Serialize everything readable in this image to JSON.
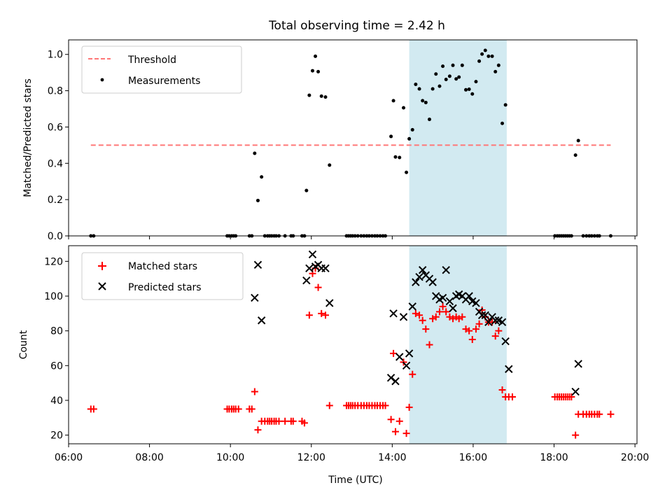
{
  "title": "Total observing time = 2.42 h",
  "colors": {
    "threshold": "#ff7777",
    "measurement": "#000000",
    "matched": "#ff0000",
    "predicted": "#000000",
    "shade": "#add8e6"
  },
  "chart_data": [
    {
      "type": "scatter",
      "ylabel": "Matched/Predicted stars",
      "ylim": [
        0,
        1.08
      ],
      "yticks": [
        0,
        0.2,
        0.4,
        0.6,
        0.8,
        1.0
      ],
      "ytick_labels": [
        "0.0",
        "0.2",
        "0.4",
        "0.6",
        "0.8",
        "1.0"
      ],
      "xlim": [
        6.0,
        20.05
      ],
      "shade": [
        14.42,
        16.83
      ],
      "legend": {
        "position": "top-left",
        "entries": [
          "Threshold",
          "Measurements"
        ]
      },
      "threshold": {
        "name": "Threshold",
        "x": [
          6.55,
          19.4
        ],
        "y": [
          0.5,
          0.5
        ]
      },
      "series": [
        {
          "name": "Measurements",
          "points": [
            [
              6.55,
              0
            ],
            [
              6.62,
              0
            ],
            [
              9.92,
              0
            ],
            [
              9.97,
              0
            ],
            [
              10.03,
              0
            ],
            [
              10.08,
              0
            ],
            [
              10.13,
              0
            ],
            [
              10.47,
              0
            ],
            [
              10.53,
              0
            ],
            [
              10.6,
              0.455
            ],
            [
              10.68,
              0.195
            ],
            [
              10.77,
              0.325
            ],
            [
              10.85,
              0
            ],
            [
              10.92,
              0
            ],
            [
              10.97,
              0
            ],
            [
              11.02,
              0
            ],
            [
              11.08,
              0
            ],
            [
              11.13,
              0
            ],
            [
              11.2,
              0
            ],
            [
              11.35,
              0
            ],
            [
              11.5,
              0
            ],
            [
              11.55,
              0
            ],
            [
              11.77,
              0
            ],
            [
              11.83,
              0
            ],
            [
              11.88,
              0.25
            ],
            [
              11.95,
              0.775
            ],
            [
              12.03,
              0.91
            ],
            [
              12.1,
              0.99
            ],
            [
              12.17,
              0.905
            ],
            [
              12.25,
              0.77
            ],
            [
              12.35,
              0.765
            ],
            [
              12.45,
              0.39
            ],
            [
              12.87,
              0
            ],
            [
              12.92,
              0
            ],
            [
              12.97,
              0
            ],
            [
              13.02,
              0
            ],
            [
              13.08,
              0
            ],
            [
              13.15,
              0
            ],
            [
              13.23,
              0
            ],
            [
              13.3,
              0
            ],
            [
              13.37,
              0
            ],
            [
              13.43,
              0
            ],
            [
              13.5,
              0
            ],
            [
              13.57,
              0
            ],
            [
              13.63,
              0
            ],
            [
              13.7,
              0
            ],
            [
              13.77,
              0
            ],
            [
              13.83,
              0
            ],
            [
              13.97,
              0.548
            ],
            [
              14.03,
              0.745
            ],
            [
              14.08,
              0.435
            ],
            [
              14.18,
              0.432
            ],
            [
              14.28,
              0.706
            ],
            [
              14.35,
              0.35
            ],
            [
              14.42,
              0.535
            ],
            [
              14.5,
              0.585
            ],
            [
              14.58,
              0.835
            ],
            [
              14.67,
              0.81
            ],
            [
              14.75,
              0.745
            ],
            [
              14.83,
              0.735
            ],
            [
              14.92,
              0.642
            ],
            [
              15.0,
              0.81
            ],
            [
              15.08,
              0.892
            ],
            [
              15.17,
              0.825
            ],
            [
              15.25,
              0.935
            ],
            [
              15.33,
              0.862
            ],
            [
              15.42,
              0.88
            ],
            [
              15.5,
              0.94
            ],
            [
              15.58,
              0.865
            ],
            [
              15.65,
              0.875
            ],
            [
              15.73,
              0.94
            ],
            [
              15.82,
              0.805
            ],
            [
              15.9,
              0.808
            ],
            [
              15.98,
              0.782
            ],
            [
              16.07,
              0.85
            ],
            [
              16.15,
              0.963
            ],
            [
              16.22,
              1.002
            ],
            [
              16.3,
              1.022
            ],
            [
              16.38,
              0.99
            ],
            [
              16.47,
              0.99
            ],
            [
              16.55,
              0.905
            ],
            [
              16.63,
              0.94
            ],
            [
              16.72,
              0.62
            ],
            [
              16.8,
              0.722
            ],
            [
              18.02,
              0
            ],
            [
              18.08,
              0
            ],
            [
              18.13,
              0
            ],
            [
              18.18,
              0
            ],
            [
              18.23,
              0
            ],
            [
              18.28,
              0
            ],
            [
              18.33,
              0
            ],
            [
              18.38,
              0
            ],
            [
              18.43,
              0
            ],
            [
              18.53,
              0.445
            ],
            [
              18.6,
              0.525
            ],
            [
              18.72,
              0
            ],
            [
              18.8,
              0
            ],
            [
              18.87,
              0
            ],
            [
              18.93,
              0
            ],
            [
              19.0,
              0
            ],
            [
              19.07,
              0
            ],
            [
              19.12,
              0
            ],
            [
              19.4,
              0
            ]
          ]
        }
      ]
    },
    {
      "type": "scatter",
      "ylabel": "Count",
      "xlabel": "Time (UTC)",
      "ylim": [
        15,
        129
      ],
      "yticks": [
        20,
        40,
        60,
        80,
        100,
        120
      ],
      "ytick_labels": [
        "20",
        "40",
        "60",
        "80",
        "100",
        "120"
      ],
      "xlim": [
        6.0,
        20.05
      ],
      "xticks": [
        6,
        8,
        10,
        12,
        14,
        16,
        18,
        20
      ],
      "xtick_labels": [
        "06:00",
        "08:00",
        "10:00",
        "12:00",
        "14:00",
        "16:00",
        "18:00",
        "20:00"
      ],
      "shade": [
        14.42,
        16.83
      ],
      "legend": {
        "position": "top-left",
        "entries": [
          "Matched stars",
          "Predicted stars"
        ]
      },
      "series": [
        {
          "name": "Matched stars",
          "points": [
            [
              6.55,
              35
            ],
            [
              6.62,
              35
            ],
            [
              9.92,
              35
            ],
            [
              9.97,
              35
            ],
            [
              10.03,
              35
            ],
            [
              10.08,
              35
            ],
            [
              10.13,
              35
            ],
            [
              10.2,
              35
            ],
            [
              10.47,
              35
            ],
            [
              10.53,
              35
            ],
            [
              10.6,
              45
            ],
            [
              10.68,
              23
            ],
            [
              10.77,
              28
            ],
            [
              10.85,
              28
            ],
            [
              10.92,
              28
            ],
            [
              10.97,
              28
            ],
            [
              11.02,
              28
            ],
            [
              11.08,
              28
            ],
            [
              11.13,
              28
            ],
            [
              11.2,
              28
            ],
            [
              11.35,
              28
            ],
            [
              11.5,
              28
            ],
            [
              11.55,
              28
            ],
            [
              11.77,
              28
            ],
            [
              11.83,
              27
            ],
            [
              11.95,
              89
            ],
            [
              12.03,
              113
            ],
            [
              12.1,
              116
            ],
            [
              12.17,
              105
            ],
            [
              12.25,
              90
            ],
            [
              12.35,
              89
            ],
            [
              12.45,
              37
            ],
            [
              12.87,
              37
            ],
            [
              12.92,
              37
            ],
            [
              12.97,
              37
            ],
            [
              13.02,
              37
            ],
            [
              13.08,
              37
            ],
            [
              13.15,
              37
            ],
            [
              13.23,
              37
            ],
            [
              13.3,
              37
            ],
            [
              13.37,
              37
            ],
            [
              13.43,
              37
            ],
            [
              13.5,
              37
            ],
            [
              13.57,
              37
            ],
            [
              13.63,
              37
            ],
            [
              13.7,
              37
            ],
            [
              13.77,
              37
            ],
            [
              13.83,
              37
            ],
            [
              13.97,
              29
            ],
            [
              14.03,
              67
            ],
            [
              14.08,
              22
            ],
            [
              14.18,
              28
            ],
            [
              14.28,
              62
            ],
            [
              14.35,
              21
            ],
            [
              14.42,
              36
            ],
            [
              14.5,
              55
            ],
            [
              14.58,
              90
            ],
            [
              14.67,
              89
            ],
            [
              14.75,
              86
            ],
            [
              14.83,
              81
            ],
            [
              14.92,
              72
            ],
            [
              15.0,
              87
            ],
            [
              15.08,
              88
            ],
            [
              15.17,
              91
            ],
            [
              15.25,
              94
            ],
            [
              15.33,
              91
            ],
            [
              15.42,
              88
            ],
            [
              15.5,
              87
            ],
            [
              15.58,
              88
            ],
            [
              15.65,
              87
            ],
            [
              15.73,
              88
            ],
            [
              15.82,
              81
            ],
            [
              15.9,
              80
            ],
            [
              15.98,
              75
            ],
            [
              16.07,
              81
            ],
            [
              16.15,
              84
            ],
            [
              16.22,
              92
            ],
            [
              16.3,
              88
            ],
            [
              16.38,
              85
            ],
            [
              16.47,
              85
            ],
            [
              16.55,
              77
            ],
            [
              16.63,
              80
            ],
            [
              16.72,
              46
            ],
            [
              16.8,
              42
            ],
            [
              16.88,
              42
            ],
            [
              16.97,
              42
            ],
            [
              18.02,
              42
            ],
            [
              18.08,
              42
            ],
            [
              18.13,
              42
            ],
            [
              18.18,
              42
            ],
            [
              18.23,
              42
            ],
            [
              18.28,
              42
            ],
            [
              18.33,
              42
            ],
            [
              18.38,
              42
            ],
            [
              18.43,
              42
            ],
            [
              18.53,
              20
            ],
            [
              18.6,
              32
            ],
            [
              18.72,
              32
            ],
            [
              18.8,
              32
            ],
            [
              18.87,
              32
            ],
            [
              18.93,
              32
            ],
            [
              19.0,
              32
            ],
            [
              19.07,
              32
            ],
            [
              19.12,
              32
            ],
            [
              19.4,
              32
            ]
          ]
        },
        {
          "name": "Predicted stars",
          "points": [
            [
              10.6,
              99
            ],
            [
              10.68,
              118
            ],
            [
              10.77,
              86
            ],
            [
              11.88,
              109
            ],
            [
              11.95,
              116
            ],
            [
              12.03,
              124
            ],
            [
              12.1,
              117
            ],
            [
              12.17,
              118
            ],
            [
              12.25,
              116
            ],
            [
              12.35,
              116
            ],
            [
              12.45,
              96
            ],
            [
              13.97,
              53
            ],
            [
              14.03,
              90
            ],
            [
              14.08,
              51
            ],
            [
              14.18,
              65
            ],
            [
              14.28,
              88
            ],
            [
              14.35,
              60
            ],
            [
              14.42,
              67
            ],
            [
              14.5,
              94
            ],
            [
              14.58,
              108
            ],
            [
              14.67,
              111
            ],
            [
              14.75,
              115
            ],
            [
              14.83,
              112
            ],
            [
              14.92,
              110
            ],
            [
              15.0,
              108
            ],
            [
              15.08,
              100
            ],
            [
              15.17,
              98
            ],
            [
              15.25,
              99
            ],
            [
              15.33,
              115
            ],
            [
              15.42,
              97
            ],
            [
              15.5,
              93
            ],
            [
              15.58,
              100
            ],
            [
              15.65,
              101
            ],
            [
              15.73,
              100
            ],
            [
              15.82,
              98
            ],
            [
              15.9,
              100
            ],
            [
              15.98,
              97
            ],
            [
              16.07,
              96
            ],
            [
              16.15,
              91
            ],
            [
              16.22,
              89
            ],
            [
              16.3,
              89
            ],
            [
              16.38,
              85
            ],
            [
              16.47,
              88
            ],
            [
              16.55,
              86
            ],
            [
              16.63,
              86
            ],
            [
              16.72,
              85
            ],
            [
              16.8,
              74
            ],
            [
              16.88,
              58
            ],
            [
              18.53,
              45
            ],
            [
              18.6,
              61
            ]
          ]
        }
      ]
    }
  ]
}
